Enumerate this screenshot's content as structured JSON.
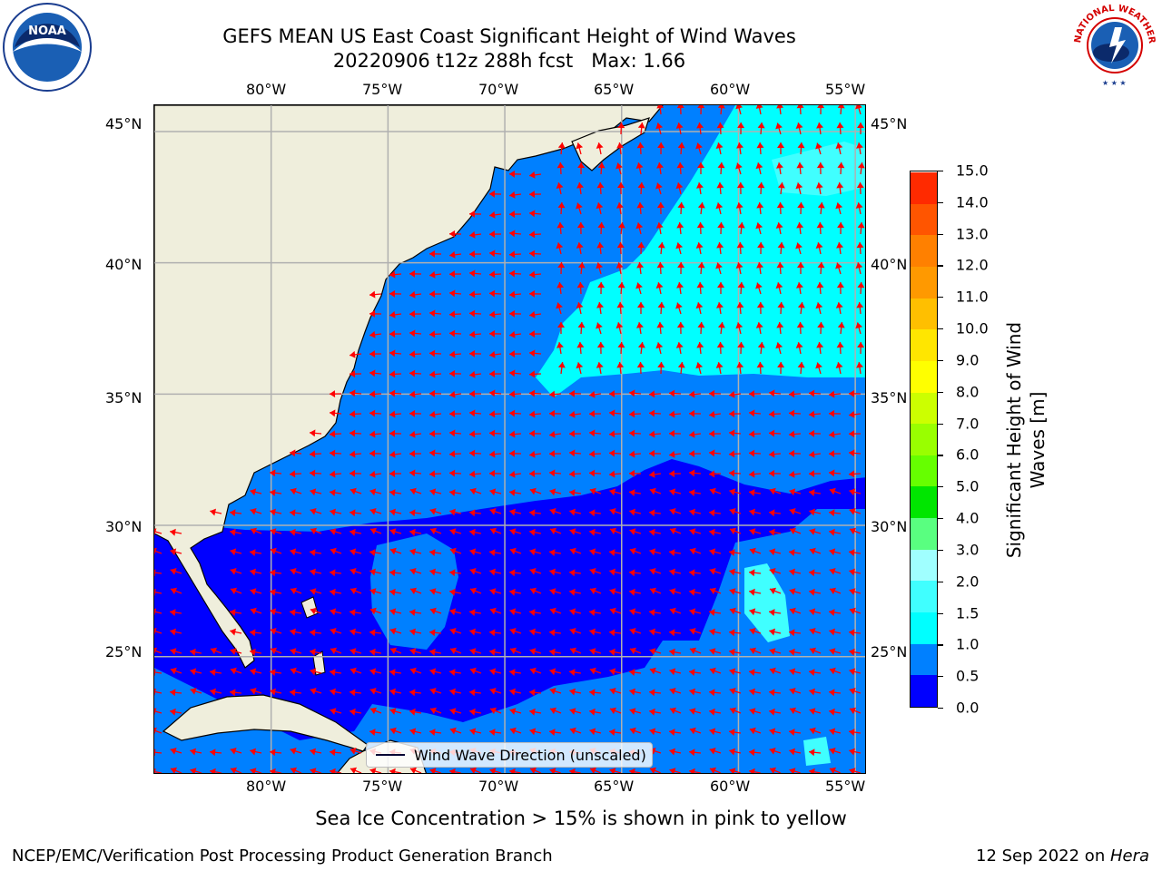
{
  "header": {
    "title_line1": "GEFS MEAN US East Coast Significant Height of Wind Waves",
    "title_line2": "20220906 t12z 288h fcst   Max: 1.66"
  },
  "logos": {
    "left": "NOAA",
    "right": "NATIONAL WEATHER SERVICE"
  },
  "map": {
    "lon_ticks": [
      "80°W",
      "75°W",
      "70°W",
      "65°W",
      "60°W",
      "55°W"
    ],
    "lat_ticks": [
      "45°N",
      "40°N",
      "35°N",
      "30°N",
      "25°N"
    ],
    "extent": {
      "lon": [
        -85,
        -54.5
      ],
      "lat": [
        20.5,
        46
      ]
    },
    "colors": {
      "land": "#efeedc",
      "grid": "#b0b0b0",
      "arrow": "#ff0000",
      "coast": "#000000"
    },
    "legend_label": "Wind Wave Direction (unscaled)"
  },
  "colorbar": {
    "label_line1": "Significant Height of Wind",
    "label_line2": "Waves [m]",
    "levels": [
      "0.0",
      "0.5",
      "1.0",
      "1.5",
      "2.0",
      "3.0",
      "4.0",
      "5.0",
      "6.0",
      "7.0",
      "8.0",
      "9.0",
      "10.0",
      "11.0",
      "12.0",
      "13.0",
      "14.0",
      "15.0"
    ],
    "colors": [
      "#0000ff",
      "#0080ff",
      "#00ffff",
      "#40ffff",
      "#a0ffff",
      "#59ff80",
      "#00e600",
      "#66ff00",
      "#99ff00",
      "#ccff00",
      "#ffff00",
      "#ffe600",
      "#ffbf00",
      "#ff9900",
      "#ff8000",
      "#ff5500",
      "#ff2a00"
    ]
  },
  "caption": "Sea Ice Concentration > 15% is shown in pink to yellow",
  "footer": {
    "left": "NCEP/EMC/Verification Post Processing Product Generation Branch",
    "right_prefix": "12 Sep 2022 on ",
    "right_host": "Hera"
  }
}
